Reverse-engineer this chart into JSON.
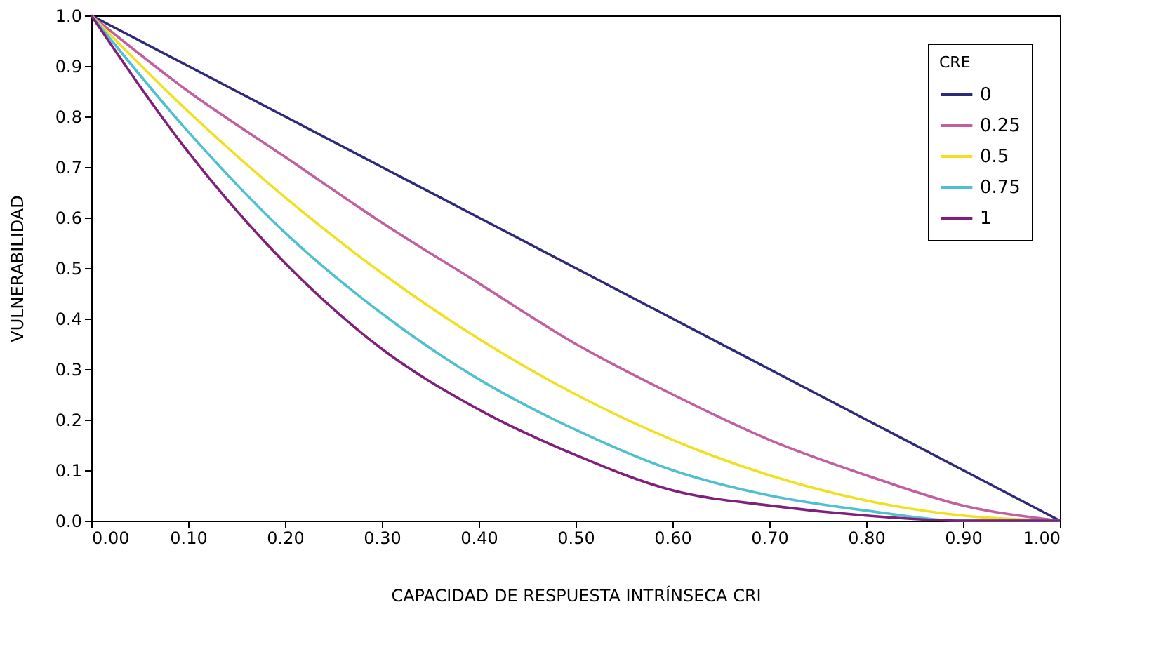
{
  "chart_data": {
    "type": "line",
    "xlabel": "CAPACIDAD DE RESPUESTA INTRÍNSECA CRI",
    "ylabel": "VULNERABILIDAD",
    "legend_title": "CRE",
    "x": [
      0,
      0.1,
      0.2,
      0.3,
      0.4,
      0.5,
      0.6,
      0.7,
      0.8,
      0.9,
      1.0
    ],
    "series": [
      {
        "name": "0",
        "color": "#2e2a7a",
        "values": [
          1,
          0.9,
          0.8,
          0.7,
          0.6,
          0.5,
          0.4,
          0.3,
          0.2,
          0.1,
          0
        ]
      },
      {
        "name": "0.25",
        "color": "#c060a0",
        "values": [
          1,
          0.85,
          0.72,
          0.59,
          0.47,
          0.35,
          0.25,
          0.16,
          0.09,
          0.03,
          0
        ]
      },
      {
        "name": "0.5",
        "color": "#f0e020",
        "values": [
          1,
          0.81,
          0.64,
          0.49,
          0.36,
          0.25,
          0.16,
          0.09,
          0.04,
          0.01,
          0
        ]
      },
      {
        "name": "0.75",
        "color": "#50c0d0",
        "values": [
          1,
          0.77,
          0.57,
          0.41,
          0.28,
          0.18,
          0.1,
          0.05,
          0.02,
          0,
          0
        ]
      },
      {
        "name": "1",
        "color": "#80207a",
        "values": [
          1,
          0.73,
          0.51,
          0.34,
          0.22,
          0.13,
          0.06,
          0.03,
          0.01,
          0,
          0
        ]
      }
    ],
    "xlim": [
      0,
      1
    ],
    "ylim": [
      0,
      1
    ],
    "xticks": [
      {
        "value": 0,
        "label": "0.00"
      },
      {
        "value": 0.1,
        "label": "0.10"
      },
      {
        "value": 0.2,
        "label": "0.20"
      },
      {
        "value": 0.3,
        "label": "0.30"
      },
      {
        "value": 0.4,
        "label": "0.40"
      },
      {
        "value": 0.5,
        "label": "0.50"
      },
      {
        "value": 0.6,
        "label": "0.60"
      },
      {
        "value": 0.7,
        "label": "0.70"
      },
      {
        "value": 0.8,
        "label": "0.80"
      },
      {
        "value": 0.9,
        "label": "0.90"
      },
      {
        "value": 1,
        "label": "1.00"
      }
    ],
    "yticks": [
      {
        "value": 0,
        "label": "0.0"
      },
      {
        "value": 0.1,
        "label": "0.1"
      },
      {
        "value": 0.2,
        "label": "0.2"
      },
      {
        "value": 0.3,
        "label": "0.3"
      },
      {
        "value": 0.4,
        "label": "0.4"
      },
      {
        "value": 0.5,
        "label": "0.5"
      },
      {
        "value": 0.6,
        "label": "0.6"
      },
      {
        "value": 0.7,
        "label": "0.7"
      },
      {
        "value": 0.8,
        "label": "0.8"
      },
      {
        "value": 0.9,
        "label": "0.9"
      },
      {
        "value": 1,
        "label": "1.0"
      }
    ],
    "grid": false,
    "legend": "top right",
    "marker": "none",
    "line_style": "solid"
  }
}
